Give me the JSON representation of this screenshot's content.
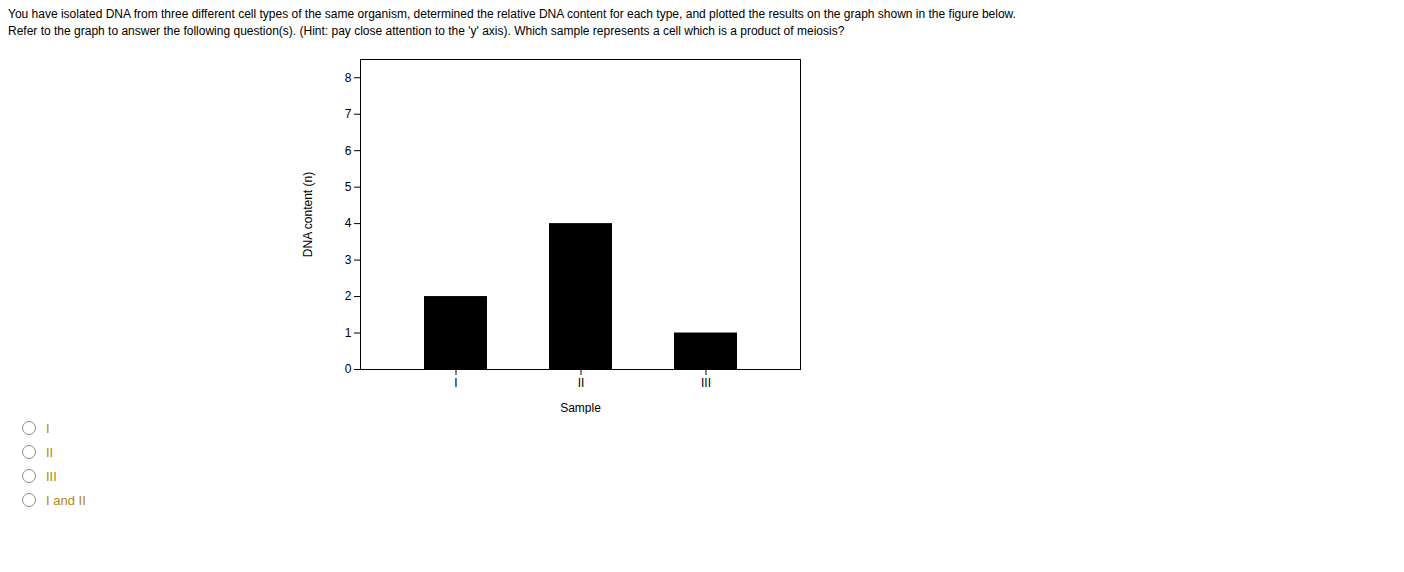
{
  "chart_data": {
    "type": "bar",
    "title": "You have isolated DNA from three different cell types of the same organism, determined the relative DNA content for each type, and plotted the results on the graph shown in the figure below.",
    "subtitle": "Refer to the graph to answer the following question(s). (Hint: pay close attention to the 'y' axis). Which sample represents a cell which is a product of meiosis?",
    "categories": [
      "I",
      "II",
      "III"
    ],
    "values": [
      2,
      4,
      1
    ],
    "color": "#000000",
    "xlabel": "Sample",
    "ylabel": "DNA content (n)",
    "ylim": [
      0,
      8.5
    ],
    "yticks": [
      0,
      1,
      2,
      3,
      4,
      5,
      6,
      7,
      8
    ],
    "grid": false,
    "annotations": [
      "I",
      "II",
      "III",
      "I and II"
    ]
  }
}
